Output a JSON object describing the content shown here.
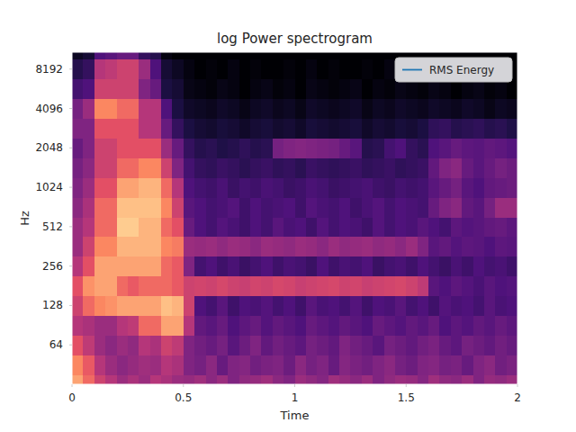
{
  "chart_data": {
    "type": "heatmap",
    "title": "log Power spectrogram",
    "x_label": "Time",
    "y_label": "Hz",
    "xlim": [
      0,
      2
    ],
    "xticks": [
      0,
      0.5,
      1,
      1.5,
      2
    ],
    "ylim": [
      32,
      11025
    ],
    "yticks": [
      64,
      128,
      256,
      512,
      1024,
      2048,
      4096,
      8192
    ],
    "log": "y",
    "grid": false,
    "legend": "upper right",
    "series": [
      {
        "name": "RMS Energy",
        "color": "#1f77b4",
        "type": "line",
        "values": []
      }
    ],
    "zlim": [
      -80,
      0
    ],
    "x_edges": [
      0,
      0.05,
      0.1,
      0.15,
      0.2,
      0.25,
      0.3,
      0.35,
      0.4,
      0.45,
      0.5,
      0.55,
      0.6,
      0.65,
      0.7,
      0.75,
      0.8,
      0.85,
      0.9,
      0.95,
      1,
      1.05,
      1.1,
      1.15,
      1.2,
      1.25,
      1.3,
      1.35,
      1.4,
      1.45,
      1.5,
      1.55,
      1.6,
      1.65,
      1.7,
      1.75,
      1.8,
      1.85,
      1.9,
      1.95,
      2
    ],
    "y_edges": [
      32,
      38,
      54,
      76,
      108,
      152,
      215,
      304,
      431,
      609,
      861,
      1218,
      1722,
      2435,
      3444,
      4871,
      6889,
      9742,
      11025
    ],
    "z": [
      [
        -15,
        -25,
        -35,
        -40,
        -45,
        -42,
        -45,
        -40,
        -42,
        -45,
        -46,
        -44,
        -48,
        -45,
        -50,
        -47,
        -46,
        -44,
        -48,
        -50,
        -45,
        -47,
        -49,
        -44,
        -46,
        -48,
        -45,
        -50,
        -47,
        -45,
        -46,
        -49,
        -44,
        -47,
        -48,
        -45,
        -50,
        -46,
        -47,
        -45
      ],
      [
        -20,
        -28,
        -40,
        -45,
        -48,
        -46,
        -44,
        -45,
        -40,
        -42,
        -50,
        -52,
        -48,
        -55,
        -50,
        -49,
        -53,
        -51,
        -50,
        -54,
        -48,
        -52,
        -50,
        -55,
        -49,
        -51,
        -53,
        -50,
        -48,
        -52,
        -54,
        -50,
        -49,
        -52,
        -51,
        -55,
        -50,
        -48,
        -53,
        -51
      ],
      [
        -30,
        -38,
        -45,
        -48,
        -45,
        -47,
        -40,
        -42,
        -35,
        -38,
        -50,
        -53,
        -55,
        -52,
        -58,
        -54,
        -50,
        -56,
        -53,
        -55,
        -57,
        -52,
        -54,
        -56,
        -50,
        -53,
        -55,
        -58,
        -52,
        -54,
        -56,
        -53,
        -51,
        -55,
        -57,
        -52,
        -54,
        -56,
        -53,
        -55
      ],
      [
        -40,
        -42,
        -45,
        -45,
        -40,
        -38,
        -25,
        -25,
        -15,
        -15,
        -40,
        -56,
        -58,
        -55,
        -60,
        -57,
        -55,
        -59,
        -56,
        -58,
        -60,
        -55,
        -57,
        -59,
        -56,
        -58,
        -60,
        -55,
        -57,
        -59,
        -56,
        -58,
        -55,
        -60,
        -57,
        -59,
        -56,
        -58,
        -55,
        -57
      ],
      [
        -35,
        -25,
        -20,
        -18,
        -15,
        -15,
        -15,
        -15,
        -10,
        -12,
        -35,
        -60,
        -62,
        -58,
        -63,
        -60,
        -61,
        -59,
        -62,
        -60,
        -63,
        -58,
        -61,
        -60,
        -62,
        -59,
        -63,
        -60,
        -61,
        -58,
        -62,
        -60,
        -63,
        -59,
        -61,
        -60,
        -62,
        -58,
        -61,
        -60
      ],
      [
        -30,
        -18,
        -15,
        -15,
        -25,
        -28,
        -25,
        -25,
        -25,
        -28,
        -35,
        -34,
        -35,
        -33,
        -35,
        -36,
        -34,
        -35,
        -33,
        -34,
        -36,
        -35,
        -34,
        -33,
        -35,
        -34,
        -36,
        -35,
        -34,
        -33,
        -35,
        -38,
        -58,
        -60,
        -57,
        -59,
        -61,
        -58,
        -60,
        -59
      ],
      [
        -40,
        -30,
        -15,
        -15,
        -15,
        -15,
        -15,
        -15,
        -25,
        -28,
        -50,
        -62,
        -60,
        -63,
        -61,
        -64,
        -62,
        -60,
        -63,
        -61,
        -62,
        -64,
        -60,
        -63,
        -61,
        -62,
        -60,
        -64,
        -62,
        -61,
        -63,
        -60,
        -62,
        -64,
        -61,
        -63,
        -60,
        -62,
        -61,
        -63
      ],
      [
        -45,
        -35,
        -20,
        -20,
        -12,
        -12,
        -12,
        -12,
        -20,
        -22,
        -45,
        -46,
        -45,
        -47,
        -45,
        -46,
        -48,
        -45,
        -46,
        -47,
        -45,
        -46,
        -48,
        -45,
        -47,
        -46,
        -45,
        -47,
        -46,
        -48,
        -45,
        -50,
        -58,
        -56,
        -59,
        -57,
        -58,
        -60,
        -57,
        -58
      ],
      [
        -45,
        -40,
        -25,
        -25,
        -8,
        -8,
        -12,
        -12,
        -25,
        -30,
        -55,
        -60,
        -62,
        -59,
        -61,
        -63,
        -60,
        -62,
        -58,
        -61,
        -60,
        -63,
        -59,
        -62,
        -60,
        -61,
        -63,
        -59,
        -62,
        -60,
        -61,
        -58,
        -60,
        -62,
        -57,
        -59,
        -58,
        -56,
        -55,
        -57
      ],
      [
        -48,
        -42,
        -25,
        -25,
        -10,
        -10,
        -10,
        -10,
        -20,
        -35,
        -58,
        -60,
        -62,
        -61,
        -59,
        -63,
        -60,
        -62,
        -61,
        -60,
        -63,
        -59,
        -61,
        -62,
        -60,
        -63,
        -61,
        -59,
        -62,
        -60,
        -61,
        -62,
        -55,
        -50,
        -48,
        -56,
        -58,
        -52,
        -45,
        -45
      ],
      [
        -50,
        -45,
        -30,
        -30,
        -15,
        -15,
        -12,
        -12,
        -25,
        -40,
        -60,
        -62,
        -63,
        -61,
        -64,
        -62,
        -63,
        -61,
        -62,
        -64,
        -63,
        -61,
        -62,
        -64,
        -63,
        -62,
        -61,
        -63,
        -64,
        -62,
        -63,
        -62,
        -58,
        -55,
        -52,
        -58,
        -60,
        -56,
        -55,
        -54
      ],
      [
        -52,
        -48,
        -35,
        -35,
        -25,
        -25,
        -20,
        -20,
        -35,
        -50,
        -62,
        -65,
        -66,
        -64,
        -65,
        -67,
        -65,
        -64,
        -66,
        -65,
        -67,
        -64,
        -65,
        -66,
        -65,
        -64,
        -66,
        -65,
        -64,
        -66,
        -65,
        -64,
        -56,
        -50,
        -48,
        -55,
        -58,
        -55,
        -52,
        -54
      ],
      [
        -55,
        -50,
        -35,
        -35,
        -30,
        -30,
        -30,
        -30,
        -45,
        -55,
        -65,
        -68,
        -67,
        -69,
        -68,
        -66,
        -68,
        -67,
        -52,
        -50,
        -49,
        -50,
        -51,
        -52,
        -55,
        -58,
        -68,
        -67,
        -62,
        -60,
        -65,
        -67,
        -60,
        -58,
        -55,
        -57,
        -58,
        -56,
        -57,
        -59
      ],
      [
        -50,
        -50,
        -30,
        -30,
        -30,
        -30,
        -40,
        -40,
        -55,
        -65,
        -70,
        -72,
        -73,
        -71,
        -72,
        -74,
        -72,
        -71,
        -73,
        -72,
        -74,
        -71,
        -72,
        -73,
        -72,
        -71,
        -74,
        -72,
        -73,
        -71,
        -72,
        -70,
        -66,
        -65,
        -68,
        -67,
        -66,
        -68,
        -67,
        -69
      ],
      [
        -52,
        -45,
        -20,
        -20,
        -25,
        -25,
        -40,
        -40,
        -60,
        -70,
        -74,
        -75,
        -76,
        -74,
        -75,
        -77,
        -75,
        -74,
        -76,
        -75,
        -77,
        -74,
        -75,
        -76,
        -75,
        -74,
        -77,
        -75,
        -76,
        -74,
        -75,
        -76,
        -74,
        -75,
        -76,
        -74,
        -75,
        -77,
        -75,
        -76
      ],
      [
        -62,
        -60,
        -35,
        -35,
        -35,
        -35,
        -50,
        -55,
        -70,
        -72,
        -77,
        -78,
        -79,
        -77,
        -78,
        -80,
        -78,
        -77,
        -79,
        -78,
        -80,
        -77,
        -78,
        -79,
        -78,
        -77,
        -80,
        -78,
        -79,
        -77,
        -78,
        -79,
        -77,
        -78,
        -80,
        -78,
        -77,
        -79,
        -78,
        -80
      ],
      [
        -68,
        -65,
        -40,
        -38,
        -35,
        -35,
        -45,
        -60,
        -72,
        -75,
        -78,
        -80,
        -79,
        -80,
        -78,
        -80,
        -79,
        -80,
        -80,
        -79,
        -80,
        -78,
        -80,
        -79,
        -80,
        -80,
        -79,
        -80,
        -78,
        -80,
        -79,
        -80,
        -80,
        -79,
        -80,
        -78,
        -80,
        -79,
        -80,
        -80
      ],
      [
        -75,
        -72,
        -60,
        -58,
        -55,
        -55,
        -65,
        -68,
        -78,
        -80,
        -80,
        -80,
        -80,
        -80,
        -80,
        -80,
        -80,
        -80,
        -80,
        -80,
        -80,
        -80,
        -80,
        -80,
        -80,
        -80,
        -80,
        -80,
        -80,
        -80,
        -80,
        -80,
        -80,
        -80,
        -80,
        -80,
        -80,
        -80,
        -80,
        -80
      ]
    ]
  }
}
